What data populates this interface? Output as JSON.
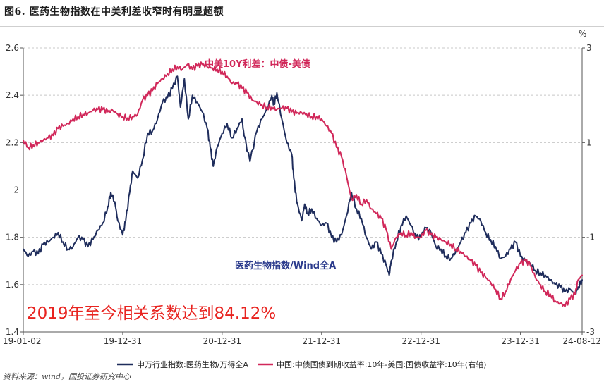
{
  "header": {
    "title": "图6. 医药生物指数在中美利差收窄时有明显超额"
  },
  "footer": {
    "source": "资料来源：wind，国投证券研究中心"
  },
  "chart_data": {
    "type": "line",
    "right_unit_label": "%",
    "x_tick_labels": [
      "19-01-02",
      "19-12-31",
      "20-12-31",
      "21-12-31",
      "22-12-31",
      "23-12-31",
      "24-08-12"
    ],
    "x_tick_positions": [
      0,
      1,
      2,
      3,
      4,
      5,
      5.62
    ],
    "x_range": [
      0,
      5.62
    ],
    "left_axis": {
      "ticks": [
        1.4,
        1.6,
        1.8,
        2,
        2.2,
        2.4,
        2.6
      ],
      "tick_labels": [
        "1.4",
        "1.6",
        "1.8",
        "2",
        "2.2",
        "2.4",
        "2.6"
      ],
      "range": [
        1.4,
        2.6
      ]
    },
    "right_axis": {
      "ticks": [
        -3,
        -1,
        1,
        3
      ],
      "tick_labels": [
        "-3",
        "-1",
        "1",
        "3"
      ],
      "range": [
        -3,
        3
      ]
    },
    "series": [
      {
        "name": "申万行业指数:医药生物/万得全A",
        "axis": "left",
        "color": "#1f2d5c",
        "points": [
          [
            0.0,
            1.75
          ],
          [
            0.05,
            1.72
          ],
          [
            0.1,
            1.74
          ],
          [
            0.15,
            1.73
          ],
          [
            0.2,
            1.77
          ],
          [
            0.25,
            1.78
          ],
          [
            0.3,
            1.8
          ],
          [
            0.35,
            1.82
          ],
          [
            0.4,
            1.78
          ],
          [
            0.45,
            1.75
          ],
          [
            0.5,
            1.76
          ],
          [
            0.55,
            1.8
          ],
          [
            0.6,
            1.79
          ],
          [
            0.65,
            1.76
          ],
          [
            0.7,
            1.79
          ],
          [
            0.75,
            1.83
          ],
          [
            0.8,
            1.86
          ],
          [
            0.85,
            1.93
          ],
          [
            0.88,
            1.99
          ],
          [
            0.92,
            1.95
          ],
          [
            0.95,
            1.87
          ],
          [
            1.0,
            1.81
          ],
          [
            1.03,
            1.87
          ],
          [
            1.07,
            1.99
          ],
          [
            1.1,
            2.08
          ],
          [
            1.15,
            2.05
          ],
          [
            1.2,
            2.13
          ],
          [
            1.25,
            2.24
          ],
          [
            1.3,
            2.25
          ],
          [
            1.35,
            2.3
          ],
          [
            1.4,
            2.37
          ],
          [
            1.45,
            2.39
          ],
          [
            1.5,
            2.43
          ],
          [
            1.55,
            2.48
          ],
          [
            1.58,
            2.35
          ],
          [
            1.62,
            2.47
          ],
          [
            1.66,
            2.3
          ],
          [
            1.7,
            2.4
          ],
          [
            1.75,
            2.37
          ],
          [
            1.8,
            2.33
          ],
          [
            1.85,
            2.26
          ],
          [
            1.88,
            2.18
          ],
          [
            1.91,
            2.1
          ],
          [
            1.95,
            2.18
          ],
          [
            2.0,
            2.24
          ],
          [
            2.05,
            2.28
          ],
          [
            2.1,
            2.22
          ],
          [
            2.15,
            2.26
          ],
          [
            2.2,
            2.3
          ],
          [
            2.22,
            2.23
          ],
          [
            2.28,
            2.12
          ],
          [
            2.35,
            2.25
          ],
          [
            2.4,
            2.3
          ],
          [
            2.45,
            2.34
          ],
          [
            2.5,
            2.4
          ],
          [
            2.52,
            2.36
          ],
          [
            2.55,
            2.41
          ],
          [
            2.6,
            2.3
          ],
          [
            2.65,
            2.2
          ],
          [
            2.7,
            2.15
          ],
          [
            2.72,
            2.05
          ],
          [
            2.75,
            1.95
          ],
          [
            2.8,
            1.87
          ],
          [
            2.83,
            1.94
          ],
          [
            2.86,
            1.9
          ],
          [
            2.9,
            1.92
          ],
          [
            2.95,
            1.88
          ],
          [
            3.0,
            1.85
          ],
          [
            3.05,
            1.86
          ],
          [
            3.1,
            1.8
          ],
          [
            3.15,
            1.78
          ],
          [
            3.2,
            1.81
          ],
          [
            3.25,
            1.89
          ],
          [
            3.3,
            1.99
          ],
          [
            3.35,
            1.92
          ],
          [
            3.4,
            1.88
          ],
          [
            3.45,
            1.8
          ],
          [
            3.5,
            1.75
          ],
          [
            3.55,
            1.78
          ],
          [
            3.6,
            1.73
          ],
          [
            3.65,
            1.68
          ],
          [
            3.68,
            1.64
          ],
          [
            3.7,
            1.7
          ],
          [
            3.75,
            1.78
          ],
          [
            3.8,
            1.85
          ],
          [
            3.85,
            1.89
          ],
          [
            3.9,
            1.85
          ],
          [
            3.95,
            1.8
          ],
          [
            4.0,
            1.8
          ],
          [
            4.05,
            1.84
          ],
          [
            4.1,
            1.82
          ],
          [
            4.15,
            1.76
          ],
          [
            4.2,
            1.75
          ],
          [
            4.25,
            1.72
          ],
          [
            4.3,
            1.71
          ],
          [
            4.35,
            1.74
          ],
          [
            4.4,
            1.78
          ],
          [
            4.45,
            1.82
          ],
          [
            4.5,
            1.86
          ],
          [
            4.55,
            1.89
          ],
          [
            4.6,
            1.87
          ],
          [
            4.65,
            1.82
          ],
          [
            4.7,
            1.79
          ],
          [
            4.75,
            1.76
          ],
          [
            4.8,
            1.71
          ],
          [
            4.85,
            1.72
          ],
          [
            4.9,
            1.75
          ],
          [
            4.95,
            1.78
          ],
          [
            5.0,
            1.72
          ],
          [
            5.05,
            1.7
          ],
          [
            5.1,
            1.69
          ],
          [
            5.15,
            1.66
          ],
          [
            5.2,
            1.65
          ],
          [
            5.25,
            1.64
          ],
          [
            5.3,
            1.62
          ],
          [
            5.35,
            1.6
          ],
          [
            5.4,
            1.59
          ],
          [
            5.45,
            1.57
          ],
          [
            5.5,
            1.58
          ],
          [
            5.55,
            1.56
          ],
          [
            5.58,
            1.59
          ],
          [
            5.62,
            1.62
          ]
        ]
      },
      {
        "name": "中国:中债国债到期收益率:10年-美国:国债收益率:10年(右轴)",
        "axis": "right",
        "color": "#d1285a",
        "points": [
          [
            0.0,
            1.05
          ],
          [
            0.05,
            0.9
          ],
          [
            0.1,
            0.95
          ],
          [
            0.15,
            1.0
          ],
          [
            0.2,
            1.05
          ],
          [
            0.25,
            1.1
          ],
          [
            0.3,
            1.15
          ],
          [
            0.35,
            1.3
          ],
          [
            0.4,
            1.35
          ],
          [
            0.45,
            1.4
          ],
          [
            0.5,
            1.5
          ],
          [
            0.55,
            1.55
          ],
          [
            0.6,
            1.6
          ],
          [
            0.65,
            1.62
          ],
          [
            0.7,
            1.68
          ],
          [
            0.75,
            1.7
          ],
          [
            0.8,
            1.7
          ],
          [
            0.85,
            1.65
          ],
          [
            0.9,
            1.68
          ],
          [
            0.95,
            1.6
          ],
          [
            1.0,
            1.55
          ],
          [
            1.05,
            1.52
          ],
          [
            1.1,
            1.55
          ],
          [
            1.15,
            1.6
          ],
          [
            1.2,
            1.9
          ],
          [
            1.25,
            2.0
          ],
          [
            1.3,
            2.1
          ],
          [
            1.35,
            2.25
          ],
          [
            1.4,
            2.35
          ],
          [
            1.45,
            2.45
          ],
          [
            1.5,
            2.55
          ],
          [
            1.55,
            2.6
          ],
          [
            1.6,
            2.55
          ],
          [
            1.65,
            2.65
          ],
          [
            1.7,
            2.55
          ],
          [
            1.75,
            2.62
          ],
          [
            1.8,
            2.65
          ],
          [
            1.85,
            2.6
          ],
          [
            1.9,
            2.58
          ],
          [
            1.95,
            2.55
          ],
          [
            2.0,
            2.5
          ],
          [
            2.05,
            2.4
          ],
          [
            2.1,
            2.25
          ],
          [
            2.15,
            2.25
          ],
          [
            2.2,
            2.15
          ],
          [
            2.25,
            2.05
          ],
          [
            2.3,
            1.9
          ],
          [
            2.35,
            1.85
          ],
          [
            2.4,
            1.8
          ],
          [
            2.45,
            1.75
          ],
          [
            2.5,
            1.75
          ],
          [
            2.55,
            1.7
          ],
          [
            2.6,
            1.73
          ],
          [
            2.65,
            1.72
          ],
          [
            2.7,
            1.65
          ],
          [
            2.75,
            1.62
          ],
          [
            2.8,
            1.63
          ],
          [
            2.85,
            1.6
          ],
          [
            2.9,
            1.55
          ],
          [
            2.95,
            1.55
          ],
          [
            3.0,
            1.5
          ],
          [
            3.05,
            1.35
          ],
          [
            3.1,
            1.2
          ],
          [
            3.15,
            0.9
          ],
          [
            3.2,
            0.7
          ],
          [
            3.25,
            0.3
          ],
          [
            3.3,
            -0.2
          ],
          [
            3.35,
            -0.1
          ],
          [
            3.4,
            -0.3
          ],
          [
            3.45,
            -0.2
          ],
          [
            3.5,
            -0.4
          ],
          [
            3.55,
            -0.5
          ],
          [
            3.6,
            -0.6
          ],
          [
            3.65,
            -0.85
          ],
          [
            3.7,
            -1.25
          ],
          [
            3.75,
            -1.0
          ],
          [
            3.8,
            -0.9
          ],
          [
            3.85,
            -0.95
          ],
          [
            3.9,
            -0.9
          ],
          [
            3.95,
            -1.0
          ],
          [
            4.0,
            -1.0
          ],
          [
            4.05,
            -0.85
          ],
          [
            4.1,
            -0.95
          ],
          [
            4.15,
            -1.0
          ],
          [
            4.2,
            -1.05
          ],
          [
            4.25,
            -1.1
          ],
          [
            4.3,
            -1.15
          ],
          [
            4.35,
            -1.25
          ],
          [
            4.4,
            -1.3
          ],
          [
            4.45,
            -1.4
          ],
          [
            4.5,
            -1.5
          ],
          [
            4.55,
            -1.6
          ],
          [
            4.6,
            -1.75
          ],
          [
            4.65,
            -1.85
          ],
          [
            4.7,
            -1.95
          ],
          [
            4.75,
            -2.1
          ],
          [
            4.8,
            -2.3
          ],
          [
            4.85,
            -2.15
          ],
          [
            4.9,
            -1.9
          ],
          [
            4.95,
            -1.7
          ],
          [
            5.0,
            -1.55
          ],
          [
            5.05,
            -1.5
          ],
          [
            5.1,
            -1.6
          ],
          [
            5.15,
            -1.85
          ],
          [
            5.2,
            -2.0
          ],
          [
            5.25,
            -2.15
          ],
          [
            5.3,
            -2.2
          ],
          [
            5.35,
            -2.35
          ],
          [
            5.4,
            -2.4
          ],
          [
            5.45,
            -2.45
          ],
          [
            5.5,
            -2.3
          ],
          [
            5.55,
            -2.2
          ],
          [
            5.58,
            -1.9
          ],
          [
            5.62,
            -1.8
          ]
        ]
      }
    ],
    "annotations": [
      {
        "text": "中美10Y利差：中债-美债",
        "color": "#d1285a"
      },
      {
        "text": "医药生物指数/Wind全A",
        "color": "#2a3a8c"
      },
      {
        "text": "2019年至今相关系数达到84.12%",
        "color": "#e8231f"
      }
    ]
  }
}
